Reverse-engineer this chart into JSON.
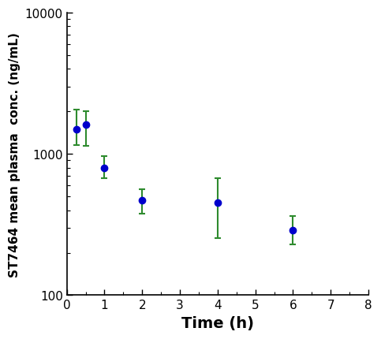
{
  "x": [
    0.25,
    0.5,
    1.0,
    2.0,
    4.0,
    6.0
  ],
  "y": [
    1500,
    1620,
    800,
    470,
    450,
    290
  ],
  "y_err_upper": [
    550,
    380,
    170,
    90,
    220,
    75
  ],
  "y_err_lower": [
    350,
    480,
    130,
    90,
    195,
    60
  ],
  "line_color": "#2e8b2e",
  "marker_color": "#0000cc",
  "marker_size": 6,
  "line_width": 1.5,
  "xlabel": "Time (h)",
  "ylabel": "ST7464 mean plasma  conc. (ng/mL)",
  "xlim": [
    0,
    8
  ],
  "xticks": [
    0,
    1,
    2,
    3,
    4,
    5,
    6,
    7,
    8
  ],
  "ylim": [
    100,
    10000
  ],
  "background_color": "#ffffff",
  "xlabel_fontsize": 14,
  "ylabel_fontsize": 11,
  "tick_fontsize": 11,
  "xlabel_fontweight": "bold",
  "ylabel_fontweight": "bold"
}
